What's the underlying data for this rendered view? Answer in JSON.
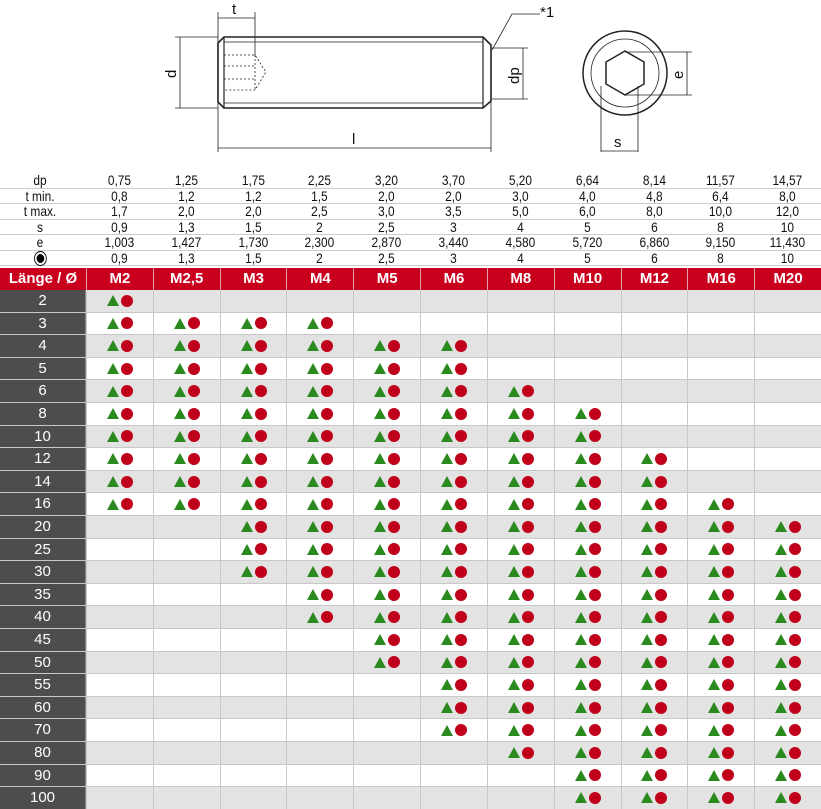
{
  "drawing": {
    "labels": {
      "t": "t",
      "d": "d",
      "l": "l",
      "dp": "dp",
      "note": "*1",
      "e": "e",
      "s": "s"
    }
  },
  "spec_table": {
    "rows": [
      {
        "label": "dp",
        "values": [
          "0,75",
          "1,25",
          "1,75",
          "2,25",
          "3,20",
          "3,70",
          "5,20",
          "6,64",
          "8,14",
          "11,57",
          "14,57"
        ]
      },
      {
        "label": "t min.",
        "values": [
          "0,8",
          "1,2",
          "1,2",
          "1,5",
          "2,0",
          "2,0",
          "3,0",
          "4,0",
          "4,8",
          "6,4",
          "8,0"
        ]
      },
      {
        "label": "t max.",
        "values": [
          "1,7",
          "2,0",
          "2,0",
          "2,5",
          "3,0",
          "3,5",
          "5,0",
          "6,0",
          "8,0",
          "10,0",
          "12,0"
        ]
      },
      {
        "label": "s",
        "values": [
          "0,9",
          "1,3",
          "1,5",
          "2",
          "2,5",
          "3",
          "4",
          "5",
          "6",
          "8",
          "10"
        ]
      },
      {
        "label": "e",
        "values": [
          "1,003",
          "1,427",
          "1,730",
          "2,300",
          "2,870",
          "3,440",
          "4,580",
          "5,720",
          "6,860",
          "9,150",
          "11,430"
        ]
      },
      {
        "label": "",
        "label_icon": "hex-key-target-icon",
        "values": [
          "0,9",
          "1,3",
          "1,5",
          "2",
          "2,5",
          "3",
          "4",
          "5",
          "6",
          "8",
          "10"
        ]
      }
    ]
  },
  "availability_table": {
    "header_label": "Länge / Ø",
    "header_color": "#c8001e",
    "columns": [
      "M2",
      "M2,5",
      "M3",
      "M4",
      "M5",
      "M6",
      "M8",
      "M10",
      "M12",
      "M16",
      "M20"
    ],
    "symbols": {
      "triangle": "green-triangle-icon",
      "triangle_color": "#2a8a1e",
      "circle": "red-circle-icon",
      "circle_color": "#c0001a"
    },
    "rows": [
      {
        "length": "2",
        "available": [
          1,
          0,
          0,
          0,
          0,
          0,
          0,
          0,
          0,
          0,
          0
        ]
      },
      {
        "length": "3",
        "available": [
          1,
          1,
          1,
          1,
          0,
          0,
          0,
          0,
          0,
          0,
          0
        ]
      },
      {
        "length": "4",
        "available": [
          1,
          1,
          1,
          1,
          1,
          1,
          0,
          0,
          0,
          0,
          0
        ]
      },
      {
        "length": "5",
        "available": [
          1,
          1,
          1,
          1,
          1,
          1,
          0,
          0,
          0,
          0,
          0
        ]
      },
      {
        "length": "6",
        "available": [
          1,
          1,
          1,
          1,
          1,
          1,
          1,
          0,
          0,
          0,
          0
        ]
      },
      {
        "length": "8",
        "available": [
          1,
          1,
          1,
          1,
          1,
          1,
          1,
          1,
          0,
          0,
          0
        ]
      },
      {
        "length": "10",
        "available": [
          1,
          1,
          1,
          1,
          1,
          1,
          1,
          1,
          0,
          0,
          0
        ]
      },
      {
        "length": "12",
        "available": [
          1,
          1,
          1,
          1,
          1,
          1,
          1,
          1,
          1,
          0,
          0
        ]
      },
      {
        "length": "14",
        "available": [
          1,
          1,
          1,
          1,
          1,
          1,
          1,
          1,
          1,
          0,
          0
        ]
      },
      {
        "length": "16",
        "available": [
          1,
          1,
          1,
          1,
          1,
          1,
          1,
          1,
          1,
          1,
          0
        ]
      },
      {
        "length": "20",
        "available": [
          0,
          0,
          1,
          1,
          1,
          1,
          1,
          1,
          1,
          1,
          1
        ]
      },
      {
        "length": "25",
        "available": [
          0,
          0,
          1,
          1,
          1,
          1,
          1,
          1,
          1,
          1,
          1
        ]
      },
      {
        "length": "30",
        "available": [
          0,
          0,
          1,
          1,
          1,
          1,
          1,
          1,
          1,
          1,
          1
        ]
      },
      {
        "length": "35",
        "available": [
          0,
          0,
          0,
          1,
          1,
          1,
          1,
          1,
          1,
          1,
          1
        ]
      },
      {
        "length": "40",
        "available": [
          0,
          0,
          0,
          1,
          1,
          1,
          1,
          1,
          1,
          1,
          1
        ]
      },
      {
        "length": "45",
        "available": [
          0,
          0,
          0,
          0,
          1,
          1,
          1,
          1,
          1,
          1,
          1
        ]
      },
      {
        "length": "50",
        "available": [
          0,
          0,
          0,
          0,
          1,
          1,
          1,
          1,
          1,
          1,
          1
        ]
      },
      {
        "length": "55",
        "available": [
          0,
          0,
          0,
          0,
          0,
          1,
          1,
          1,
          1,
          1,
          1
        ]
      },
      {
        "length": "60",
        "available": [
          0,
          0,
          0,
          0,
          0,
          1,
          1,
          1,
          1,
          1,
          1
        ]
      },
      {
        "length": "70",
        "available": [
          0,
          0,
          0,
          0,
          0,
          1,
          1,
          1,
          1,
          1,
          1
        ]
      },
      {
        "length": "80",
        "available": [
          0,
          0,
          0,
          0,
          0,
          0,
          1,
          1,
          1,
          1,
          1
        ]
      },
      {
        "length": "90",
        "available": [
          0,
          0,
          0,
          0,
          0,
          0,
          0,
          1,
          1,
          1,
          1
        ]
      },
      {
        "length": "100",
        "available": [
          0,
          0,
          0,
          0,
          0,
          0,
          0,
          1,
          1,
          1,
          1
        ]
      }
    ]
  }
}
